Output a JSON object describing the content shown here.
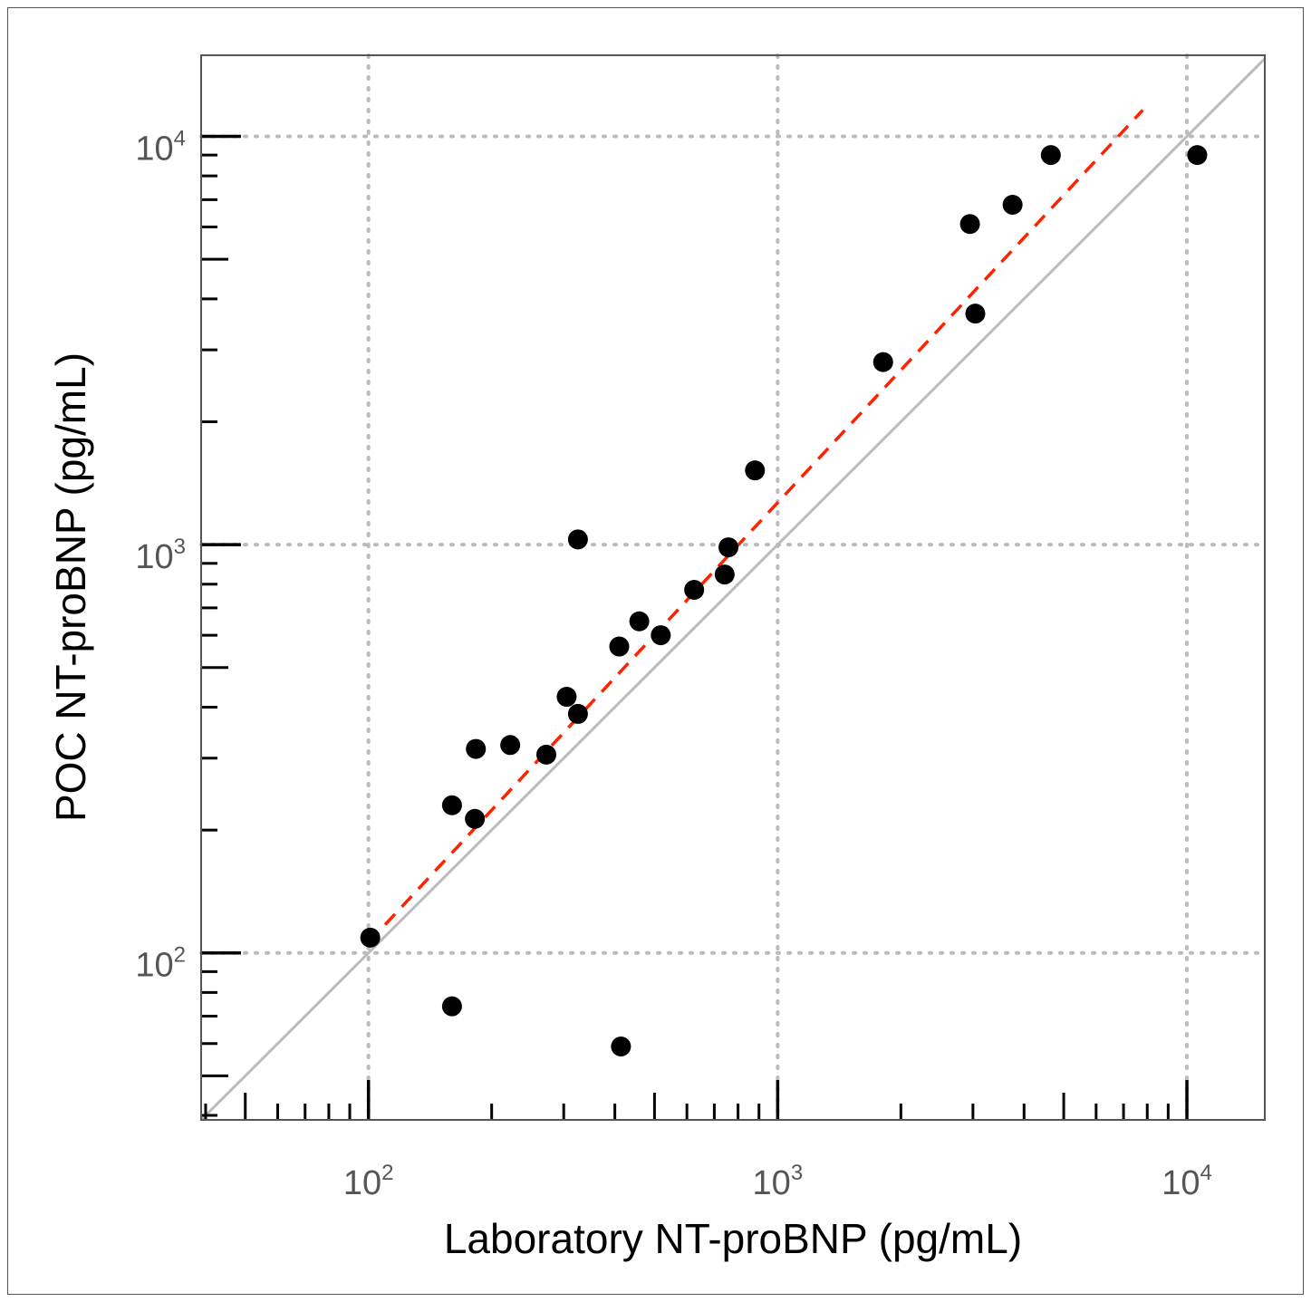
{
  "chart_data": {
    "type": "scatter",
    "xlabel": "Laboratory NT-proBNP (pg/mL)",
    "ylabel": "POC NT-proBNP (pg/mL)",
    "xscale": "log",
    "yscale": "log",
    "xlim": [
      39,
      15500
    ],
    "ylim": [
      39,
      15800
    ],
    "major_ticks": [
      100,
      1000,
      10000
    ],
    "tick_labels": [
      {
        "base": "10",
        "exp": "2"
      },
      {
        "base": "10",
        "exp": "3"
      },
      {
        "base": "10",
        "exp": "4"
      }
    ],
    "minor_ticks": [
      40,
      50,
      60,
      70,
      80,
      90,
      200,
      300,
      400,
      500,
      600,
      700,
      800,
      900,
      2000,
      3000,
      4000,
      5000,
      6000,
      7000,
      8000,
      9000
    ],
    "grid": "dotted at major ticks",
    "points": [
      {
        "x": 101,
        "y": 109
      },
      {
        "x": 160,
        "y": 74
      },
      {
        "x": 160,
        "y": 230
      },
      {
        "x": 182,
        "y": 213
      },
      {
        "x": 183,
        "y": 316
      },
      {
        "x": 222,
        "y": 323
      },
      {
        "x": 272,
        "y": 306
      },
      {
        "x": 305,
        "y": 424
      },
      {
        "x": 325,
        "y": 385
      },
      {
        "x": 325,
        "y": 1030
      },
      {
        "x": 410,
        "y": 563
      },
      {
        "x": 414,
        "y": 59
      },
      {
        "x": 459,
        "y": 649
      },
      {
        "x": 518,
        "y": 600
      },
      {
        "x": 625,
        "y": 775
      },
      {
        "x": 742,
        "y": 845
      },
      {
        "x": 758,
        "y": 985
      },
      {
        "x": 880,
        "y": 1520
      },
      {
        "x": 1810,
        "y": 2800
      },
      {
        "x": 2950,
        "y": 6100
      },
      {
        "x": 3040,
        "y": 3680
      },
      {
        "x": 3750,
        "y": 6800
      },
      {
        "x": 4650,
        "y": 9000
      },
      {
        "x": 10600,
        "y": 9000
      }
    ],
    "identity_line": {
      "color": "#bbbbbb"
    },
    "regression_line": {
      "x_start": 100,
      "y_start": 106,
      "x_end": 7800,
      "y_end": 11600,
      "color": "#ff2200",
      "style": "dashed"
    },
    "colors": {
      "points": "#000000",
      "grid": "#bbbbbb",
      "frame": "#555555"
    }
  }
}
